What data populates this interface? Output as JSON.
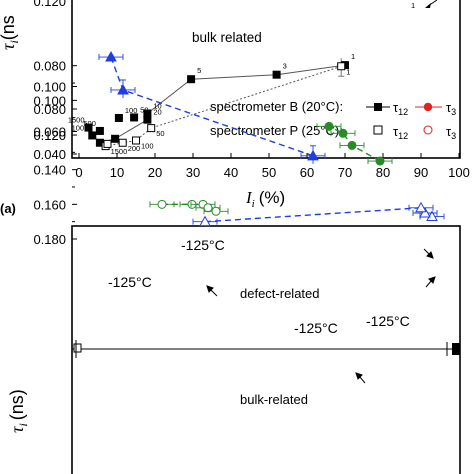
{
  "chart_data": [
    {
      "type": "scatter",
      "panel_label": "(a)",
      "xlabel_var": "I",
      "xlabel_sub": "i",
      "xlabel_unit": "(%)",
      "ylabel_var": "τ",
      "ylabel_sub": "i",
      "ylabel_unit": "(ns",
      "xlim": [
        0,
        100
      ],
      "ylim": [
        0.04,
        0.125
      ],
      "x_ticks": [
        "0",
        "10",
        "20",
        "30",
        "40",
        "50",
        "60",
        "70",
        "80",
        "90",
        "100"
      ],
      "y_ticks": [
        "0.040",
        "0.060",
        "0.080",
        "0.100"
      ],
      "annotations": [
        {
          "text": "bulk related",
          "x": 39,
          "y": 0.099
        }
      ],
      "series": [
        {
          "marker": "filled-square",
          "line": "solid",
          "points": [
            {
              "x": 2.5,
              "y": 0.0635,
              "label": "1500"
            },
            {
              "x": 3.5,
              "y": 0.0565,
              "label": "1000"
            },
            {
              "x": 5.5,
              "y": 0.0605,
              "label": "500"
            },
            {
              "x": 5.5,
              "y": 0.05,
              "label": ""
            },
            {
              "x": 9.5,
              "y": 0.0535,
              "label": ""
            },
            {
              "x": 10.5,
              "y": 0.072,
              "label": "100"
            },
            {
              "x": 14.5,
              "y": 0.0725,
              "label": "50"
            },
            {
              "x": 18.0,
              "y": 0.076,
              "label": "10"
            },
            {
              "x": 18.0,
              "y": 0.0705,
              "label": "20"
            },
            {
              "x": 29.5,
              "y": 0.1065,
              "label": "5"
            },
            {
              "x": 52.0,
              "y": 0.1105,
              "label": "3"
            },
            {
              "x": 70.0,
              "y": 0.119,
              "label": "1"
            }
          ]
        },
        {
          "marker": "open-square",
          "line": "dotted",
          "points": [
            {
              "x": 7.0,
              "y": 0.047,
              "label": "1500"
            },
            {
              "x": 7.5,
              "y": 0.049,
              "label": ""
            },
            {
              "x": 11.5,
              "y": 0.05,
              "label": "200"
            },
            {
              "x": 15.0,
              "y": 0.052,
              "label": "100"
            },
            {
              "x": 19.0,
              "y": 0.063,
              "label": "50"
            },
            {
              "x": 69.0,
              "y": 0.118,
              "label": "1"
            }
          ]
        }
      ],
      "legend": {
        "position": "lower-right",
        "rows": [
          {
            "label": "spectrometer B (20°C):",
            "items": [
              "τ12",
              "τ3"
            ],
            "markers": [
              "filled-square",
              "filled-circle"
            ]
          },
          {
            "label": "spectrometer P (25°C):",
            "items": [
              "τ12",
              "τ3"
            ],
            "markers": [
              "open-square",
              "open-circle"
            ]
          }
        ]
      },
      "top_fragment_ytick": "0.120",
      "top_fragment_label": "1"
    },
    {
      "type": "scatter",
      "ylabel_var": "τ",
      "ylabel_sub": "i",
      "ylabel_unit": "(ns)",
      "ylim": [
        0.07,
        0.185
      ],
      "y_ticks": [
        "0.180",
        "0.160",
        "0.140",
        "0.120",
        "0.100",
        "0.080"
      ],
      "annotations": [
        {
          "text": "-125°C",
          "where": "defect-upper"
        },
        {
          "text": "-125°C",
          "where": "defect-left"
        },
        {
          "text": "defect-related",
          "where": "defect"
        },
        {
          "text": "-125°C",
          "where": "bulk-blue"
        },
        {
          "text": "-125°C",
          "where": "bulk-green"
        },
        {
          "text": "bulk-related",
          "where": "bulk"
        }
      ],
      "reference_line_y": 0.1295,
      "series": [
        {
          "group": "defect",
          "color": "#1f3ee0",
          "marker": "open-triangle",
          "line": "dashed",
          "points": [
            {
              "y": 0.17
            },
            {
              "y": 0.167
            },
            {
              "y": 0.165
            },
            {
              "y": 0.162
            }
          ]
        },
        {
          "group": "defect",
          "color": "#2a8a2a",
          "marker": "open-circle",
          "line": "dashed",
          "points": [
            {
              "y": 0.16
            },
            {
              "y": 0.16
            },
            {
              "y": 0.16
            },
            {
              "y": 0.162
            },
            {
              "y": 0.164
            }
          ]
        },
        {
          "group": "bulk",
          "color": "#1f3ee0",
          "marker": "filled-triangle",
          "line": "dashed",
          "points": [
            {
              "y": 0.132
            },
            {
              "y": 0.094
            },
            {
              "y": 0.075
            }
          ]
        },
        {
          "group": "bulk",
          "color": "#2a8a2a",
          "marker": "filled-circle",
          "line": "dashed",
          "points": [
            {
              "y": 0.135
            },
            {
              "y": 0.126
            },
            {
              "y": 0.119
            },
            {
              "y": 0.115
            }
          ]
        }
      ]
    }
  ],
  "colors": {
    "blue": "#1f3ee0",
    "green": "#2a8a2a",
    "red": "#e0231f",
    "black": "#000000"
  }
}
